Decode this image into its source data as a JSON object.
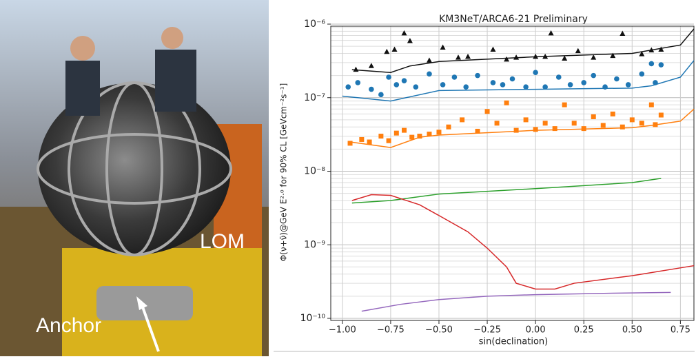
{
  "photo_labels": {
    "lom": "LOM",
    "anchor": "Anchor"
  },
  "chart_data": {
    "type": "scatter",
    "title": "KM3NeT/ARCA6-21 Preliminary",
    "x_label": "sin(declination)",
    "y_label": "Φ(ν+ν̄)@GeV E²·⁰ for 90% CL [GeVcm⁻²s⁻¹]",
    "log_y": true,
    "grid": true,
    "xlim": [
      -1.06,
      0.82
    ],
    "ylim": [
      1e-10,
      1e-06
    ],
    "xticks": [
      {
        "value": -1,
        "label": "−1.00"
      },
      {
        "value": -0.75,
        "label": "−0.75"
      },
      {
        "value": -0.5,
        "label": "−0.50"
      },
      {
        "value": -0.25,
        "label": "−0.25"
      },
      {
        "value": 0,
        "label": "0.00"
      },
      {
        "value": 0.25,
        "label": "0.25"
      },
      {
        "value": 0.5,
        "label": "0.50"
      },
      {
        "value": 0.75,
        "label": "0.75"
      }
    ],
    "yticks": [
      {
        "value": 1e-10,
        "label": "10⁻¹⁰"
      },
      {
        "value": 1e-09,
        "label": "10⁻⁹"
      },
      {
        "value": 1e-08,
        "label": "10⁻⁸"
      },
      {
        "value": 1e-07,
        "label": "10⁻⁷"
      },
      {
        "value": 1e-06,
        "label": "10⁻⁶"
      }
    ],
    "yticks_minor": [
      2e-10,
      3e-10,
      4e-10,
      5e-10,
      6e-10,
      7e-10,
      8e-10,
      9e-10,
      2e-09,
      3e-09,
      4e-09,
      5e-09,
      6e-09,
      7e-09,
      8e-09,
      9e-09,
      2e-08,
      3e-08,
      4e-08,
      5e-08,
      6e-08,
      7e-08,
      8e-08,
      9e-08,
      2e-07,
      3e-07,
      4e-07,
      5e-07,
      6e-07,
      7e-07,
      8e-07,
      9e-07
    ],
    "series": [
      {
        "mode": "line",
        "color": "#111111",
        "x": [
          -0.95,
          -0.75,
          -0.65,
          -0.5,
          0,
          0.5,
          0.75,
          0.82
        ],
        "values": [
          2.4e-07,
          2.2e-07,
          2.7e-07,
          3.1e-07,
          3.6e-07,
          4e-07,
          5.2e-07,
          8.6e-07
        ]
      },
      {
        "mode": "markers",
        "marker": "triangle",
        "color": "#111111",
        "x": [
          -0.93,
          -0.85,
          -0.77,
          -0.73,
          -0.68,
          -0.65,
          -0.55,
          -0.48,
          -0.4,
          -0.35,
          -0.22,
          -0.15,
          -0.1,
          0,
          0.05,
          0.08,
          0.15,
          0.22,
          0.3,
          0.4,
          0.45,
          0.55,
          0.6,
          0.65
        ],
        "values": [
          2.4e-07,
          2.7e-07,
          4.2e-07,
          4.5e-07,
          7.5e-07,
          5.9e-07,
          3.2e-07,
          4.8e-07,
          3.5e-07,
          3.6e-07,
          4.5e-07,
          3.3e-07,
          3.5e-07,
          3.6e-07,
          3.6e-07,
          7.5e-07,
          3.4e-07,
          4.3e-07,
          3.5e-07,
          3.7e-07,
          7.4e-07,
          3.9e-07,
          4.4e-07,
          4.5e-07
        ]
      },
      {
        "mode": "line",
        "color": "#1f77b4",
        "x": [
          -1.0,
          -0.75,
          -0.5,
          0,
          0.5,
          0.6,
          0.75,
          0.82
        ],
        "values": [
          1.05e-07,
          9e-08,
          1.25e-07,
          1.3e-07,
          1.35e-07,
          1.45e-07,
          1.9e-07,
          3.2e-07
        ]
      },
      {
        "mode": "markers",
        "marker": "circle",
        "color": "#1f77b4",
        "x": [
          -0.97,
          -0.92,
          -0.85,
          -0.8,
          -0.76,
          -0.72,
          -0.68,
          -0.62,
          -0.55,
          -0.48,
          -0.42,
          -0.36,
          -0.3,
          -0.22,
          -0.17,
          -0.12,
          -0.05,
          0,
          0.05,
          0.12,
          0.18,
          0.25,
          0.3,
          0.36,
          0.42,
          0.48,
          0.55,
          0.6,
          0.62,
          0.65
        ],
        "values": [
          1.4e-07,
          1.6e-07,
          1.3e-07,
          1.1e-07,
          1.9e-07,
          1.5e-07,
          1.7e-07,
          1.4e-07,
          2.1e-07,
          1.5e-07,
          1.9e-07,
          1.4e-07,
          2e-07,
          1.6e-07,
          1.5e-07,
          1.8e-07,
          1.4e-07,
          2.2e-07,
          1.4e-07,
          1.9e-07,
          1.5e-07,
          1.6e-07,
          2e-07,
          1.4e-07,
          1.8e-07,
          1.5e-07,
          2.1e-07,
          2.9e-07,
          1.6e-07,
          2.8e-07
        ]
      },
      {
        "mode": "line",
        "color": "#ff7f0e",
        "x": [
          -0.96,
          -0.75,
          -0.6,
          -0.5,
          0,
          0.5,
          0.6,
          0.75,
          0.82
        ],
        "values": [
          2.5e-08,
          2.1e-08,
          2.9e-08,
          3.1e-08,
          3.6e-08,
          3.9e-08,
          4.2e-08,
          4.8e-08,
          7e-08
        ]
      },
      {
        "mode": "markers",
        "marker": "square",
        "color": "#ff7f0e",
        "x": [
          -0.96,
          -0.9,
          -0.86,
          -0.8,
          -0.76,
          -0.72,
          -0.68,
          -0.64,
          -0.6,
          -0.55,
          -0.5,
          -0.45,
          -0.38,
          -0.3,
          -0.25,
          -0.2,
          -0.15,
          -0.1,
          -0.05,
          0,
          0.05,
          0.1,
          0.15,
          0.2,
          0.25,
          0.3,
          0.35,
          0.4,
          0.45,
          0.5,
          0.55,
          0.6,
          0.62,
          0.65
        ],
        "values": [
          2.4e-08,
          2.7e-08,
          2.5e-08,
          3e-08,
          2.6e-08,
          3.3e-08,
          3.6e-08,
          2.9e-08,
          3e-08,
          3.2e-08,
          3.4e-08,
          4e-08,
          5e-08,
          3.5e-08,
          6.5e-08,
          4.5e-08,
          8.5e-08,
          3.6e-08,
          5e-08,
          3.7e-08,
          4.5e-08,
          3.8e-08,
          8e-08,
          4.5e-08,
          3.8e-08,
          5.5e-08,
          4.2e-08,
          6e-08,
          4e-08,
          5e-08,
          4.5e-08,
          8e-08,
          4.3e-08,
          5.8e-08
        ]
      },
      {
        "mode": "line",
        "color": "#2ca02c",
        "x": [
          -0.95,
          -0.75,
          -0.5,
          0,
          0.5,
          0.65
        ],
        "values": [
          3.7e-09,
          4e-09,
          4.9e-09,
          5.8e-09,
          7e-09,
          8e-09
        ]
      },
      {
        "mode": "line",
        "color": "#d62728",
        "x": [
          -0.95,
          -0.85,
          -0.75,
          -0.6,
          -0.5,
          -0.35,
          -0.25,
          -0.15,
          -0.1,
          0,
          0.1,
          0.2,
          0.5,
          0.82
        ],
        "values": [
          4e-09,
          4.8e-09,
          4.7e-09,
          3.5e-09,
          2.5e-09,
          1.5e-09,
          9e-10,
          5e-10,
          3e-10,
          2.5e-10,
          2.5e-10,
          3e-10,
          3.8e-10,
          5.2e-10
        ]
      },
      {
        "mode": "line",
        "color": "#9467bd",
        "x": [
          -0.9,
          -0.7,
          -0.5,
          -0.25,
          0,
          0.4,
          0.7
        ],
        "values": [
          1.25e-10,
          1.55e-10,
          1.8e-10,
          2e-10,
          2.1e-10,
          2.2e-10,
          2.25e-10
        ]
      }
    ]
  }
}
